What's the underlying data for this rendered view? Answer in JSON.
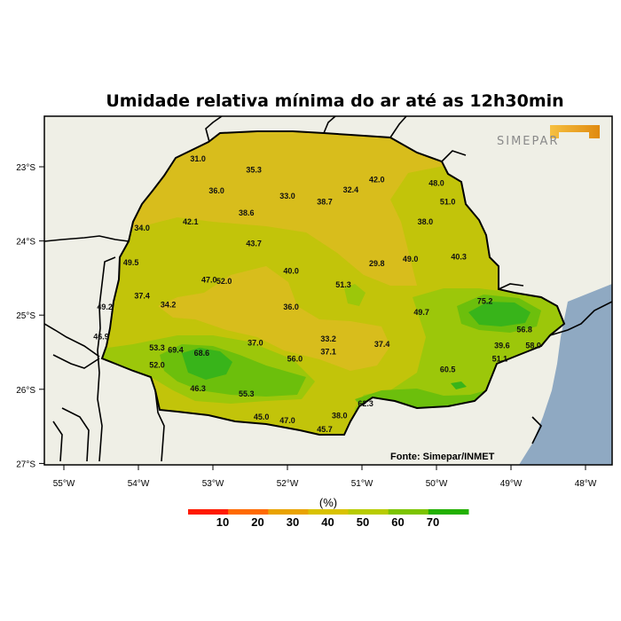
{
  "title": "Umidade relativa mínima do ar até as 12h30min",
  "source": "Fonte: Simepar/INMET",
  "logo": {
    "text": "SIMEPAR",
    "accent_color": "#f0a020",
    "text_color": "#8a8a8a"
  },
  "colors": {
    "land_outside": "#efefe6",
    "ocean": "#8fa9c2"
  },
  "x_ticks": [
    {
      "label": "55°W",
      "lon": -55
    },
    {
      "label": "54°W",
      "lon": -54
    },
    {
      "label": "53°W",
      "lon": -53
    },
    {
      "label": "52°W",
      "lon": -52
    },
    {
      "label": "51°W",
      "lon": -51
    },
    {
      "label": "50°W",
      "lon": -50
    },
    {
      "label": "49°W",
      "lon": -49
    },
    {
      "label": "48°W",
      "lon": -48
    }
  ],
  "y_ticks": [
    {
      "label": "23°S",
      "lat": -23
    },
    {
      "label": "24°S",
      "lat": -24
    },
    {
      "label": "25°S",
      "lat": -25
    },
    {
      "label": "26°S",
      "lat": -26
    },
    {
      "label": "27°S",
      "lat": -27
    }
  ],
  "colorbar": {
    "unit": "(%)",
    "labels": [
      "10",
      "20",
      "30",
      "40",
      "50",
      "60",
      "70"
    ],
    "colors": [
      "#ff1a00",
      "#ff6a00",
      "#e9a300",
      "#d9c200",
      "#b8cc00",
      "#7cc400",
      "#22b000"
    ]
  },
  "stations": [
    {
      "v": "31.0",
      "lon": -53.2,
      "lat": -22.9
    },
    {
      "v": "35.3",
      "lon": -52.45,
      "lat": -23.05
    },
    {
      "v": "36.0",
      "lon": -52.95,
      "lat": -23.33
    },
    {
      "v": "33.0",
      "lon": -52.0,
      "lat": -23.4
    },
    {
      "v": "38.7",
      "lon": -51.5,
      "lat": -23.48
    },
    {
      "v": "32.4",
      "lon": -51.15,
      "lat": -23.32
    },
    {
      "v": "42.0",
      "lon": -50.8,
      "lat": -23.18
    },
    {
      "v": "48.0",
      "lon": -50.0,
      "lat": -23.23
    },
    {
      "v": "51.0",
      "lon": -49.85,
      "lat": -23.48
    },
    {
      "v": "38.0",
      "lon": -50.15,
      "lat": -23.75
    },
    {
      "v": "38.6",
      "lon": -52.55,
      "lat": -23.63
    },
    {
      "v": "42.1",
      "lon": -53.3,
      "lat": -23.75
    },
    {
      "v": "34.0",
      "lon": -53.95,
      "lat": -23.83
    },
    {
      "v": "43.7",
      "lon": -52.45,
      "lat": -24.04
    },
    {
      "v": "49.5",
      "lon": -54.1,
      "lat": -24.3
    },
    {
      "v": "40.0",
      "lon": -51.95,
      "lat": -24.41
    },
    {
      "v": "29.8",
      "lon": -50.8,
      "lat": -24.31
    },
    {
      "v": "49.0",
      "lon": -50.35,
      "lat": -24.25
    },
    {
      "v": "40.3",
      "lon": -49.7,
      "lat": -24.22
    },
    {
      "v": "47.0",
      "lon": -53.05,
      "lat": -24.53
    },
    {
      "v": "52.0",
      "lon": -52.85,
      "lat": -24.55
    },
    {
      "v": "51.3",
      "lon": -51.25,
      "lat": -24.6
    },
    {
      "v": "37.4",
      "lon": -53.95,
      "lat": -24.75
    },
    {
      "v": "34.2",
      "lon": -53.6,
      "lat": -24.87
    },
    {
      "v": "49.2",
      "lon": -54.45,
      "lat": -24.9
    },
    {
      "v": "36.0",
      "lon": -51.95,
      "lat": -24.9
    },
    {
      "v": "75.2",
      "lon": -49.35,
      "lat": -24.82
    },
    {
      "v": "49.7",
      "lon": -50.2,
      "lat": -24.97
    },
    {
      "v": "46.9",
      "lon": -54.5,
      "lat": -25.3
    },
    {
      "v": "56.8",
      "lon": -48.82,
      "lat": -25.2
    },
    {
      "v": "53.3",
      "lon": -53.75,
      "lat": -25.45
    },
    {
      "v": "69.4",
      "lon": -53.5,
      "lat": -25.48
    },
    {
      "v": "68.6",
      "lon": -53.15,
      "lat": -25.52
    },
    {
      "v": "37.0",
      "lon": -52.43,
      "lat": -25.38
    },
    {
      "v": "33.2",
      "lon": -51.45,
      "lat": -25.33
    },
    {
      "v": "37.1",
      "lon": -51.45,
      "lat": -25.5
    },
    {
      "v": "37.4",
      "lon": -50.73,
      "lat": -25.4
    },
    {
      "v": "39.6",
      "lon": -49.12,
      "lat": -25.42
    },
    {
      "v": "58.0",
      "lon": -48.7,
      "lat": -25.42
    },
    {
      "v": "56.0",
      "lon": -51.9,
      "lat": -25.6
    },
    {
      "v": "51.1",
      "lon": -49.15,
      "lat": -25.6
    },
    {
      "v": "52.0",
      "lon": -53.75,
      "lat": -25.68
    },
    {
      "v": "60.5",
      "lon": -49.85,
      "lat": -25.74
    },
    {
      "v": "46.3",
      "lon": -53.2,
      "lat": -26.0
    },
    {
      "v": "55.3",
      "lon": -52.55,
      "lat": -26.07
    },
    {
      "v": "62.3",
      "lon": -50.95,
      "lat": -26.2
    },
    {
      "v": "38.0",
      "lon": -51.3,
      "lat": -26.36
    },
    {
      "v": "45.0",
      "lon": -52.35,
      "lat": -26.38
    },
    {
      "v": "47.0",
      "lon": -52.0,
      "lat": -26.43
    },
    {
      "v": "45.7",
      "lon": -51.5,
      "lat": -26.55
    }
  ]
}
